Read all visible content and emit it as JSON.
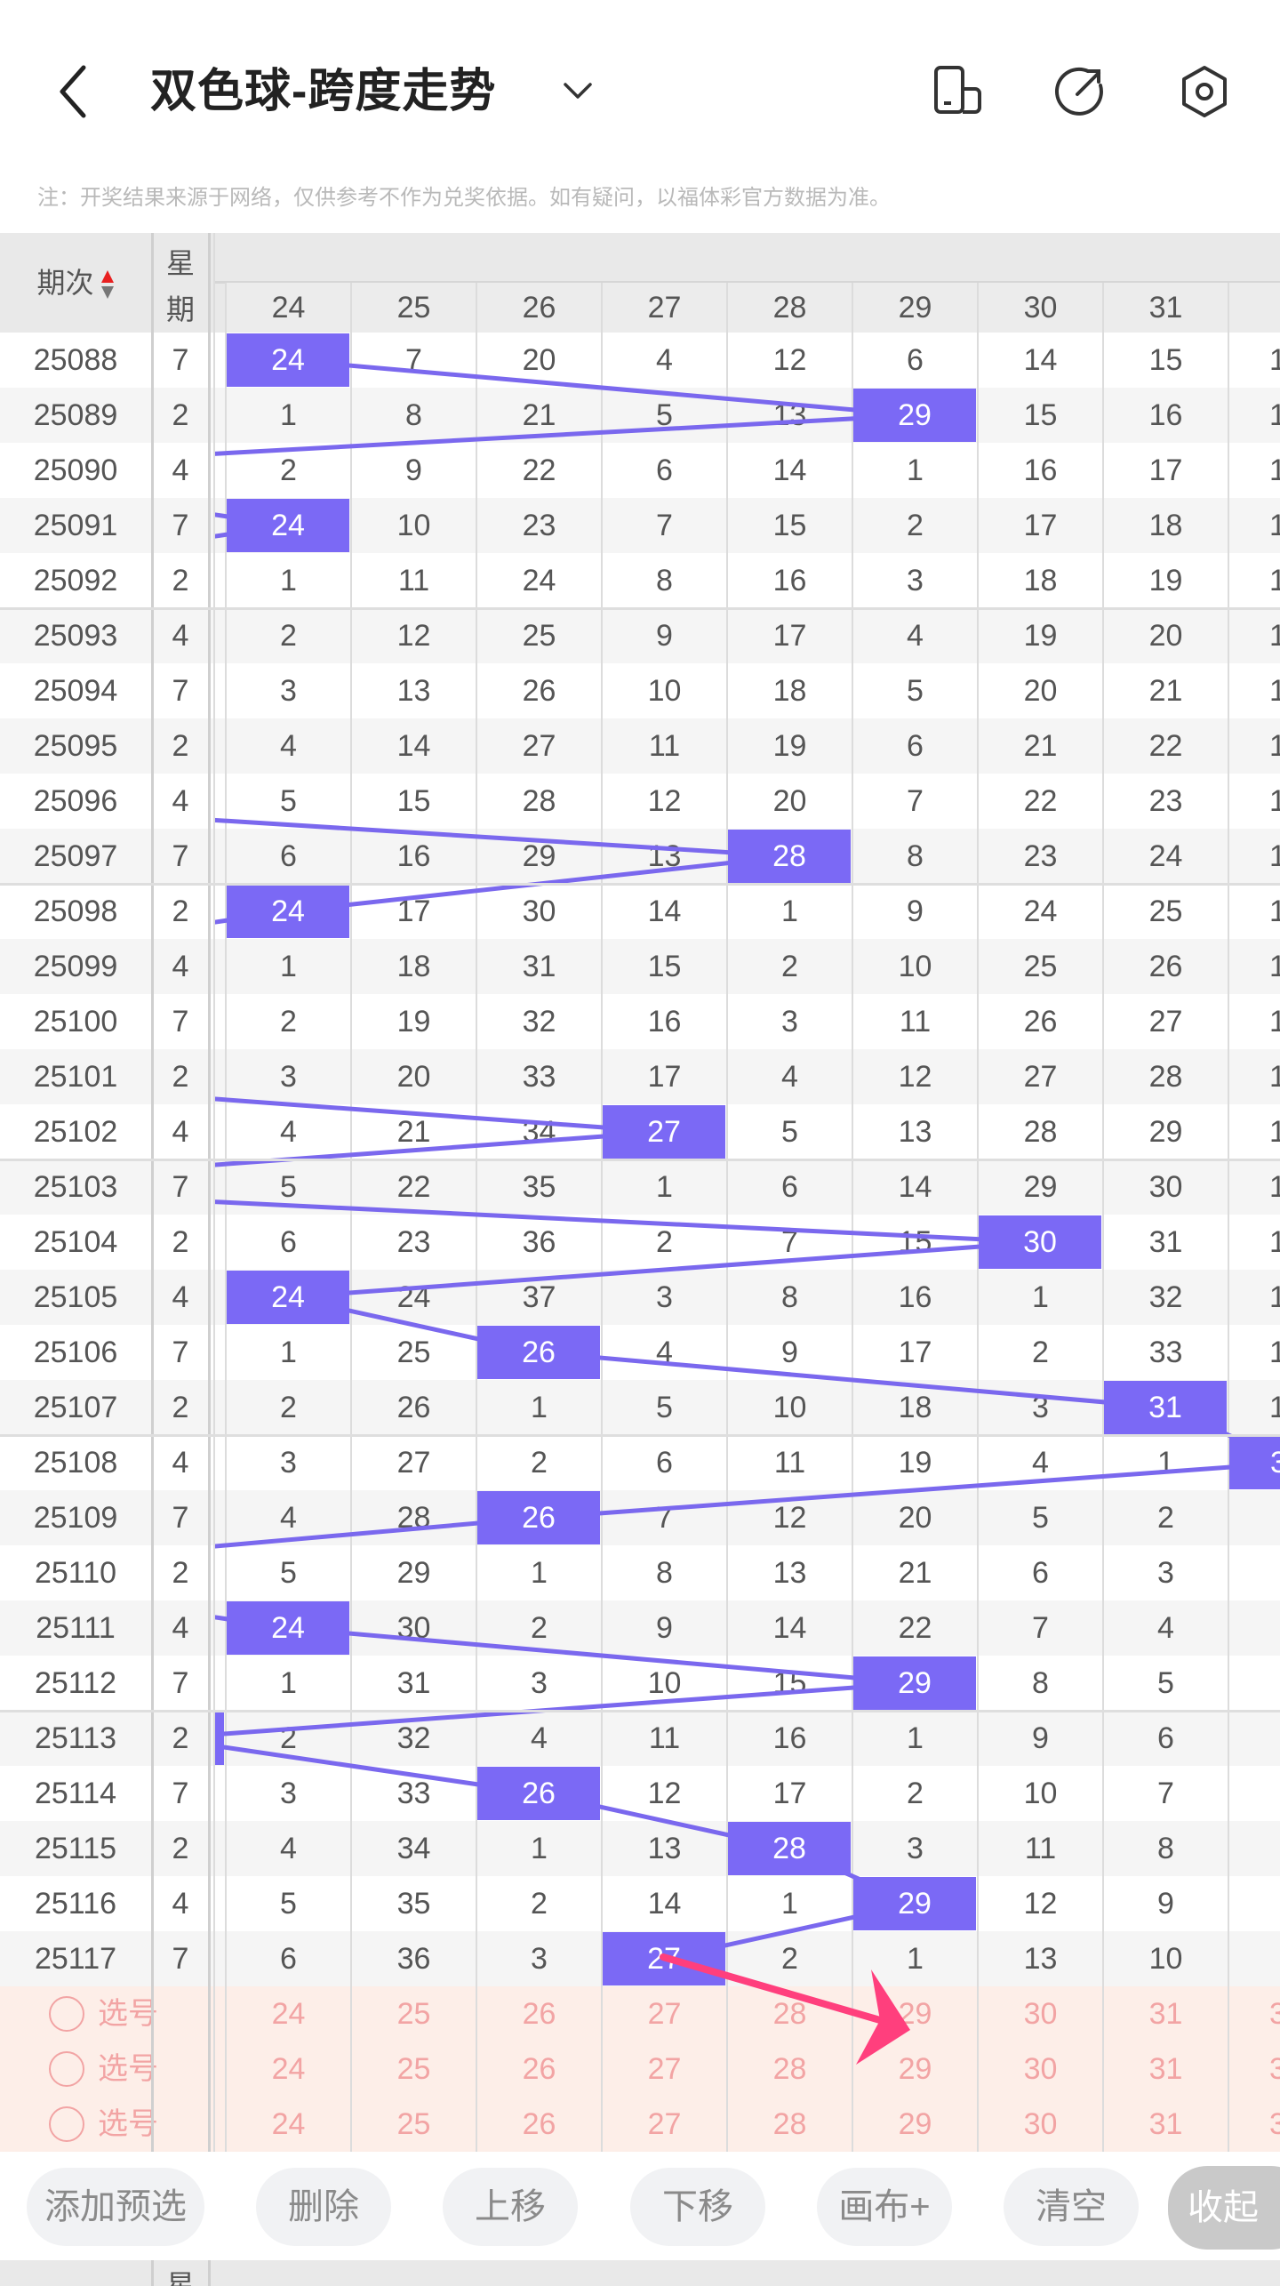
{
  "header": {
    "title": "双色球-跨度走势",
    "back_icon": "chevron-left-icon",
    "dropdown_icon": "chevron-down-icon",
    "icons": [
      "phone-rotate-icon",
      "share-arrow-icon",
      "settings-hexagon-icon"
    ]
  },
  "note": "注：开奖结果来源于网络，仅供参考不作为兑奖依据。如有疑问，以福体彩官方数据为准。",
  "table": {
    "issue_header": "期次",
    "week_header_top": "星",
    "week_header_bottom": "期",
    "columns": [
      "24",
      "25",
      "26",
      "27",
      "28",
      "29",
      "30",
      "31",
      "3"
    ],
    "colors": {
      "highlight": "#7b69f5",
      "line": "#7a68ee",
      "arrow": "#ff3f7d",
      "pick_bg": "#fdeee8",
      "pick_text": "#f2a4a4"
    },
    "rows": [
      {
        "issue": "25088",
        "week": "7",
        "values": [
          "24",
          "7",
          "20",
          "4",
          "12",
          "6",
          "14",
          "15",
          "1"
        ],
        "hit": 24
      },
      {
        "issue": "25089",
        "week": "2",
        "values": [
          "1",
          "8",
          "21",
          "5",
          "13",
          "29",
          "15",
          "16",
          "1"
        ],
        "hit": 29
      },
      {
        "issue": "25090",
        "week": "4",
        "values": [
          "2",
          "9",
          "22",
          "6",
          "14",
          "1",
          "16",
          "17",
          "1"
        ],
        "hit": null
      },
      {
        "issue": "25091",
        "week": "7",
        "values": [
          "24",
          "10",
          "23",
          "7",
          "15",
          "2",
          "17",
          "18",
          "1"
        ],
        "hit": 24
      },
      {
        "issue": "25092",
        "week": "2",
        "values": [
          "1",
          "11",
          "24",
          "8",
          "16",
          "3",
          "18",
          "19",
          "1"
        ],
        "hit": null
      },
      {
        "issue": "25093",
        "week": "4",
        "values": [
          "2",
          "12",
          "25",
          "9",
          "17",
          "4",
          "19",
          "20",
          "1"
        ],
        "hit": null
      },
      {
        "issue": "25094",
        "week": "7",
        "values": [
          "3",
          "13",
          "26",
          "10",
          "18",
          "5",
          "20",
          "21",
          "1"
        ],
        "hit": null
      },
      {
        "issue": "25095",
        "week": "2",
        "values": [
          "4",
          "14",
          "27",
          "11",
          "19",
          "6",
          "21",
          "22",
          "1"
        ],
        "hit": null
      },
      {
        "issue": "25096",
        "week": "4",
        "values": [
          "5",
          "15",
          "28",
          "12",
          "20",
          "7",
          "22",
          "23",
          "1"
        ],
        "hit": null
      },
      {
        "issue": "25097",
        "week": "7",
        "values": [
          "6",
          "16",
          "29",
          "13",
          "28",
          "8",
          "23",
          "24",
          "1"
        ],
        "hit": 28
      },
      {
        "issue": "25098",
        "week": "2",
        "values": [
          "24",
          "17",
          "30",
          "14",
          "1",
          "9",
          "24",
          "25",
          "1"
        ],
        "hit": 24
      },
      {
        "issue": "25099",
        "week": "4",
        "values": [
          "1",
          "18",
          "31",
          "15",
          "2",
          "10",
          "25",
          "26",
          "1"
        ],
        "hit": null
      },
      {
        "issue": "25100",
        "week": "7",
        "values": [
          "2",
          "19",
          "32",
          "16",
          "3",
          "11",
          "26",
          "27",
          "1"
        ],
        "hit": null
      },
      {
        "issue": "25101",
        "week": "2",
        "values": [
          "3",
          "20",
          "33",
          "17",
          "4",
          "12",
          "27",
          "28",
          "1"
        ],
        "hit": null
      },
      {
        "issue": "25102",
        "week": "4",
        "values": [
          "4",
          "21",
          "34",
          "27",
          "5",
          "13",
          "28",
          "29",
          "1"
        ],
        "hit": 27
      },
      {
        "issue": "25103",
        "week": "7",
        "values": [
          "5",
          "22",
          "35",
          "1",
          "6",
          "14",
          "29",
          "30",
          "1"
        ],
        "hit": null
      },
      {
        "issue": "25104",
        "week": "2",
        "values": [
          "6",
          "23",
          "36",
          "2",
          "7",
          "15",
          "30",
          "31",
          "1"
        ],
        "hit": 30
      },
      {
        "issue": "25105",
        "week": "4",
        "values": [
          "24",
          "24",
          "37",
          "3",
          "8",
          "16",
          "1",
          "32",
          "1"
        ],
        "hit": 24
      },
      {
        "issue": "25106",
        "week": "7",
        "values": [
          "1",
          "25",
          "26",
          "4",
          "9",
          "17",
          "2",
          "33",
          "1"
        ],
        "hit": 26
      },
      {
        "issue": "25107",
        "week": "2",
        "values": [
          "2",
          "26",
          "1",
          "5",
          "10",
          "18",
          "3",
          "31",
          "1"
        ],
        "hit": 31
      },
      {
        "issue": "25108",
        "week": "4",
        "values": [
          "3",
          "27",
          "2",
          "6",
          "11",
          "19",
          "4",
          "1",
          "3"
        ],
        "hit": 32
      },
      {
        "issue": "25109",
        "week": "7",
        "values": [
          "4",
          "28",
          "26",
          "7",
          "12",
          "20",
          "5",
          "2",
          ""
        ],
        "hit": 26
      },
      {
        "issue": "25110",
        "week": "2",
        "values": [
          "5",
          "29",
          "1",
          "8",
          "13",
          "21",
          "6",
          "3",
          ""
        ],
        "hit": null
      },
      {
        "issue": "25111",
        "week": "4",
        "values": [
          "24",
          "30",
          "2",
          "9",
          "14",
          "22",
          "7",
          "4",
          ""
        ],
        "hit": 24
      },
      {
        "issue": "25112",
        "week": "7",
        "values": [
          "1",
          "31",
          "3",
          "10",
          "15",
          "29",
          "8",
          "5",
          ""
        ],
        "hit": 29
      },
      {
        "issue": "25113",
        "week": "2",
        "values": [
          "2",
          "32",
          "4",
          "11",
          "16",
          "1",
          "9",
          "6",
          ""
        ],
        "hit": 23
      },
      {
        "issue": "25114",
        "week": "7",
        "values": [
          "3",
          "33",
          "26",
          "12",
          "17",
          "2",
          "10",
          "7",
          ""
        ],
        "hit": 26
      },
      {
        "issue": "25115",
        "week": "2",
        "values": [
          "4",
          "34",
          "1",
          "13",
          "28",
          "3",
          "11",
          "8",
          ""
        ],
        "hit": 28
      },
      {
        "issue": "25116",
        "week": "4",
        "values": [
          "5",
          "35",
          "2",
          "14",
          "1",
          "29",
          "12",
          "9",
          ""
        ],
        "hit": 29
      },
      {
        "issue": "25117",
        "week": "7",
        "values": [
          "6",
          "36",
          "3",
          "27",
          "2",
          "1",
          "13",
          "10",
          ""
        ],
        "hit": 27
      }
    ],
    "picks": [
      {
        "label": "选号",
        "values": [
          "24",
          "25",
          "26",
          "27",
          "28",
          "29",
          "30",
          "31",
          "3"
        ]
      },
      {
        "label": "选号",
        "values": [
          "24",
          "25",
          "26",
          "27",
          "28",
          "29",
          "30",
          "31",
          "3"
        ]
      },
      {
        "label": "选号",
        "values": [
          "24",
          "25",
          "26",
          "27",
          "28",
          "29",
          "30",
          "31",
          "3"
        ]
      }
    ]
  },
  "toolbar": {
    "add": "添加预选",
    "delete": "删除",
    "move_up": "上移",
    "move_down": "下移",
    "canvas": "画布+",
    "clear": "清空",
    "collapse": "收起"
  },
  "footer_week": "星"
}
